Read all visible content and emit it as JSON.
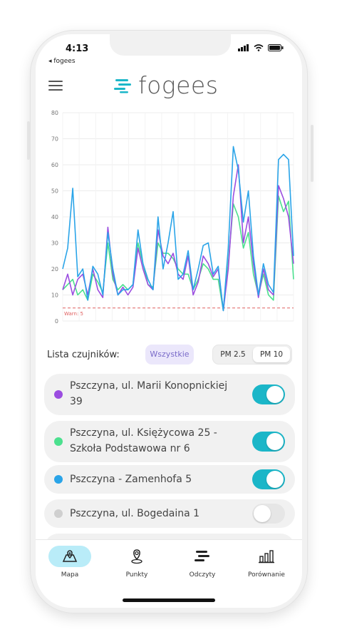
{
  "status_bar": {
    "time": "4:13",
    "back_app": "◂ fogees"
  },
  "header": {
    "logo_text": "fogees",
    "menu_icon": "hamburger-icon"
  },
  "chart_data": {
    "type": "line",
    "y_ticks": [
      0,
      10,
      20,
      30,
      40,
      50,
      60,
      70,
      80
    ],
    "ylim": [
      0,
      80
    ],
    "grid": true,
    "threshold": {
      "label": "Warn: 5",
      "value": 5,
      "color": "#e06060"
    },
    "series": [
      {
        "color": "#2aa4e8",
        "values": [
          20,
          28,
          51,
          17,
          20,
          8,
          21,
          18,
          10,
          34,
          20,
          10,
          12,
          12,
          14,
          35,
          22,
          16,
          12,
          40,
          20,
          30,
          42,
          16,
          18,
          27,
          12,
          20,
          29,
          30,
          18,
          21,
          4,
          28,
          67,
          58,
          38,
          50,
          25,
          10,
          22,
          14,
          11,
          62,
          64,
          62,
          25
        ]
      },
      {
        "color": "#9b4de0",
        "values": [
          12,
          18,
          10,
          16,
          18,
          10,
          20,
          12,
          9,
          36,
          18,
          10,
          13,
          10,
          13,
          28,
          20,
          14,
          12,
          35,
          25,
          22,
          26,
          18,
          16,
          25,
          10,
          15,
          25,
          22,
          17,
          20,
          4,
          20,
          48,
          60,
          30,
          40,
          22,
          9,
          20,
          12,
          10,
          52,
          47,
          40,
          22
        ]
      },
      {
        "color": "#4be08e",
        "values": [
          12,
          14,
          16,
          10,
          12,
          8,
          18,
          15,
          11,
          30,
          16,
          12,
          14,
          12,
          14,
          30,
          22,
          14,
          13,
          30,
          26,
          26,
          24,
          20,
          18,
          18,
          12,
          16,
          22,
          20,
          16,
          16,
          4,
          22,
          45,
          40,
          28,
          34,
          18,
          10,
          18,
          10,
          8,
          48,
          42,
          46,
          16
        ]
      }
    ]
  },
  "list": {
    "title": "Lista czujników:",
    "all_chip": "Wszystkie",
    "seg_pm25": "PM 2.5",
    "seg_pm10": "PM 10"
  },
  "sensors": [
    {
      "line1": "Pszczyna, ul. Marii Konopnickiej",
      "line2": "39",
      "color": "#9b4de0",
      "on": true
    },
    {
      "line1": "Pszczyna, ul. Księżycowa 25 -",
      "line2": "Szkoła Podstawowa nr 6",
      "color": "#4be08e",
      "on": true
    },
    {
      "line1": "Pszczyna - Zamenhofa 5",
      "line2": "",
      "color": "#2aa4e8",
      "on": true
    },
    {
      "line1": "Pszczyna, ul. Bogedaina 1",
      "line2": "",
      "color": "#cfcfcf",
      "on": false
    }
  ],
  "tabs": [
    {
      "label": "Mapa",
      "icon": "map-icon",
      "active": true
    },
    {
      "label": "Punkty",
      "icon": "location-pin-icon",
      "active": false
    },
    {
      "label": "Odczyty",
      "icon": "readings-icon",
      "active": false
    },
    {
      "label": "Porównanie",
      "icon": "bar-chart-icon",
      "active": false
    }
  ],
  "colors": {
    "accent": "#1bb6c8",
    "tab_active_bg": "#b9ecf8"
  }
}
